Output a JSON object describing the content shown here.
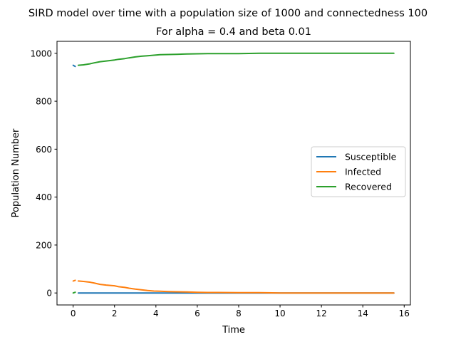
{
  "chart_data": {
    "type": "line",
    "suptitle": "SIRD model over time with a population size of 1000 and connectedness 100",
    "title": "For alpha = 0.4 and beta 0.01",
    "xlabel": "Time",
    "ylabel": "Population Number",
    "xlim": [
      -0.78,
      16.3
    ],
    "ylim": [
      -50,
      1050
    ],
    "xticks": [
      0,
      2,
      4,
      6,
      8,
      10,
      12,
      14,
      16
    ],
    "yticks": [
      0,
      200,
      400,
      600,
      800,
      1000
    ],
    "grid": false,
    "legend_position": "center-right",
    "series": [
      {
        "name": "Susceptible",
        "color": "#1f77b4",
        "segments": [
          {
            "x": [
              0.0,
              0.1
            ],
            "y": [
              950,
              945
            ]
          },
          {
            "x": [
              0.25,
              1,
              2,
              4,
              6,
              8,
              10,
              12,
              14,
              15.5
            ],
            "y": [
              0,
              0,
              0,
              0,
              0,
              0,
              0,
              0,
              0,
              0
            ]
          }
        ]
      },
      {
        "name": "Infected",
        "color": "#ff7f0e",
        "segments": [
          {
            "x": [
              0.0,
              0.1
            ],
            "y": [
              50,
              53
            ]
          },
          {
            "x": [
              0.25,
              0.5,
              0.8,
              1.0,
              1.3,
              1.6,
              2.0,
              2.2,
              2.5,
              2.7,
              3.0,
              3.3,
              3.6,
              3.9,
              4.2,
              4.6,
              5.0,
              5.5,
              6.0,
              6.5,
              7.0,
              8.0,
              9.0,
              10.0,
              12.0,
              14.0,
              15.5
            ],
            "y": [
              50,
              48,
              45,
              42,
              36,
              33,
              30,
              26,
              23,
              20,
              16,
              13,
              10,
              8,
              7,
              6,
              5,
              4,
              3,
              2,
              2,
              1,
              1,
              0,
              0,
              0,
              0
            ]
          }
        ]
      },
      {
        "name": "Recovered",
        "color": "#2ca02c",
        "segments": [
          {
            "x": [
              0.0,
              0.1
            ],
            "y": [
              0,
              3
            ]
          },
          {
            "x": [
              0.25,
              0.5,
              0.8,
              1.0,
              1.3,
              1.6,
              2.0,
              2.2,
              2.5,
              2.7,
              3.0,
              3.3,
              3.6,
              3.9,
              4.2,
              4.6,
              5.0,
              5.5,
              6.0,
              6.5,
              7.0,
              8.0,
              9.0,
              10.0,
              12.0,
              14.0,
              15.5
            ],
            "y": [
              950,
              952,
              956,
              960,
              965,
              968,
              972,
              975,
              978,
              981,
              985,
              988,
              990,
              992,
              994,
              995,
              996,
              997,
              998,
              999,
              999,
              999,
              1000,
              1000,
              1000,
              1000,
              1000
            ]
          }
        ]
      }
    ]
  }
}
